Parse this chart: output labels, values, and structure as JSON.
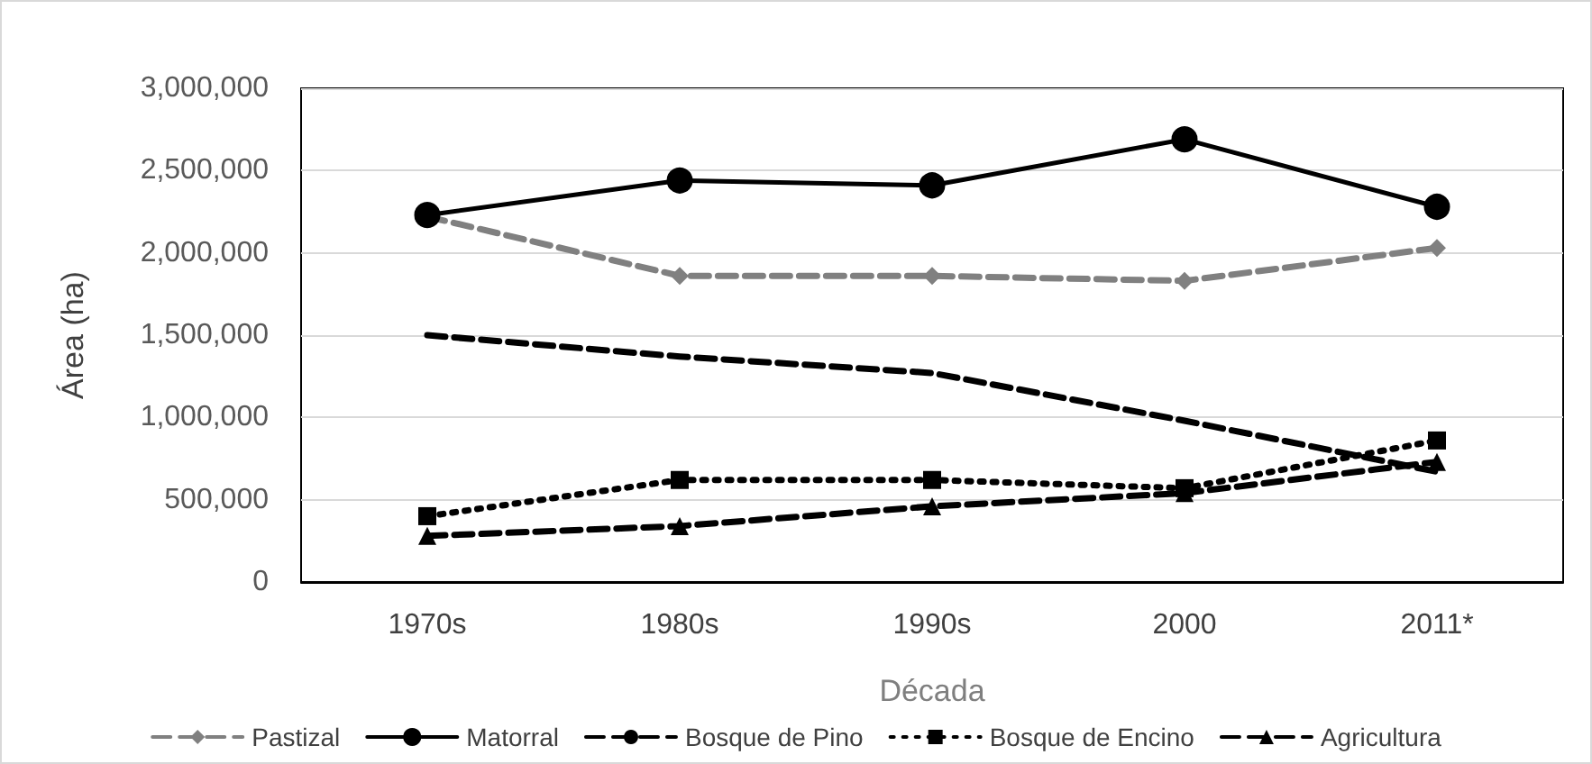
{
  "chart_data": {
    "type": "line",
    "xlabel": "Década",
    "ylabel": "Área (ha)",
    "categories": [
      "1970s",
      "1980s",
      "1990s",
      "2000",
      "2011*"
    ],
    "series": [
      {
        "name": "Pastizal",
        "color": "#808080",
        "line_style": "dashed",
        "marker": "diamond",
        "values": [
          2220000,
          1860000,
          1860000,
          1830000,
          2030000
        ]
      },
      {
        "name": "Matorral",
        "color": "#000000",
        "line_style": "solid",
        "marker": "circle",
        "values": [
          2230000,
          2440000,
          2410000,
          2690000,
          2280000
        ]
      },
      {
        "name": "Bosque de Pino",
        "color": "#000000",
        "line_style": "dashed",
        "marker": "none",
        "values": [
          1500000,
          1370000,
          1270000,
          980000,
          670000
        ]
      },
      {
        "name": "Bosque de Encino",
        "color": "#000000",
        "line_style": "dotted",
        "marker": "square",
        "values": [
          400000,
          620000,
          620000,
          570000,
          860000
        ]
      },
      {
        "name": "Agricultura",
        "color": "#000000",
        "line_style": "dashed",
        "marker": "triangle",
        "values": [
          280000,
          340000,
          460000,
          540000,
          730000
        ]
      }
    ],
    "ylim": [
      0,
      3000000
    ],
    "yticks": [
      {
        "value": 0,
        "label": "0"
      },
      {
        "value": 500000,
        "label": "500,000"
      },
      {
        "value": 1000000,
        "label": "1,000,000"
      },
      {
        "value": 1500000,
        "label": "1,500,000"
      },
      {
        "value": 2000000,
        "label": "2,000,000"
      },
      {
        "value": 2500000,
        "label": "2,500,000"
      },
      {
        "value": 3000000,
        "label": "3,000,000"
      }
    ],
    "grid": "y",
    "legend": "bottom"
  }
}
